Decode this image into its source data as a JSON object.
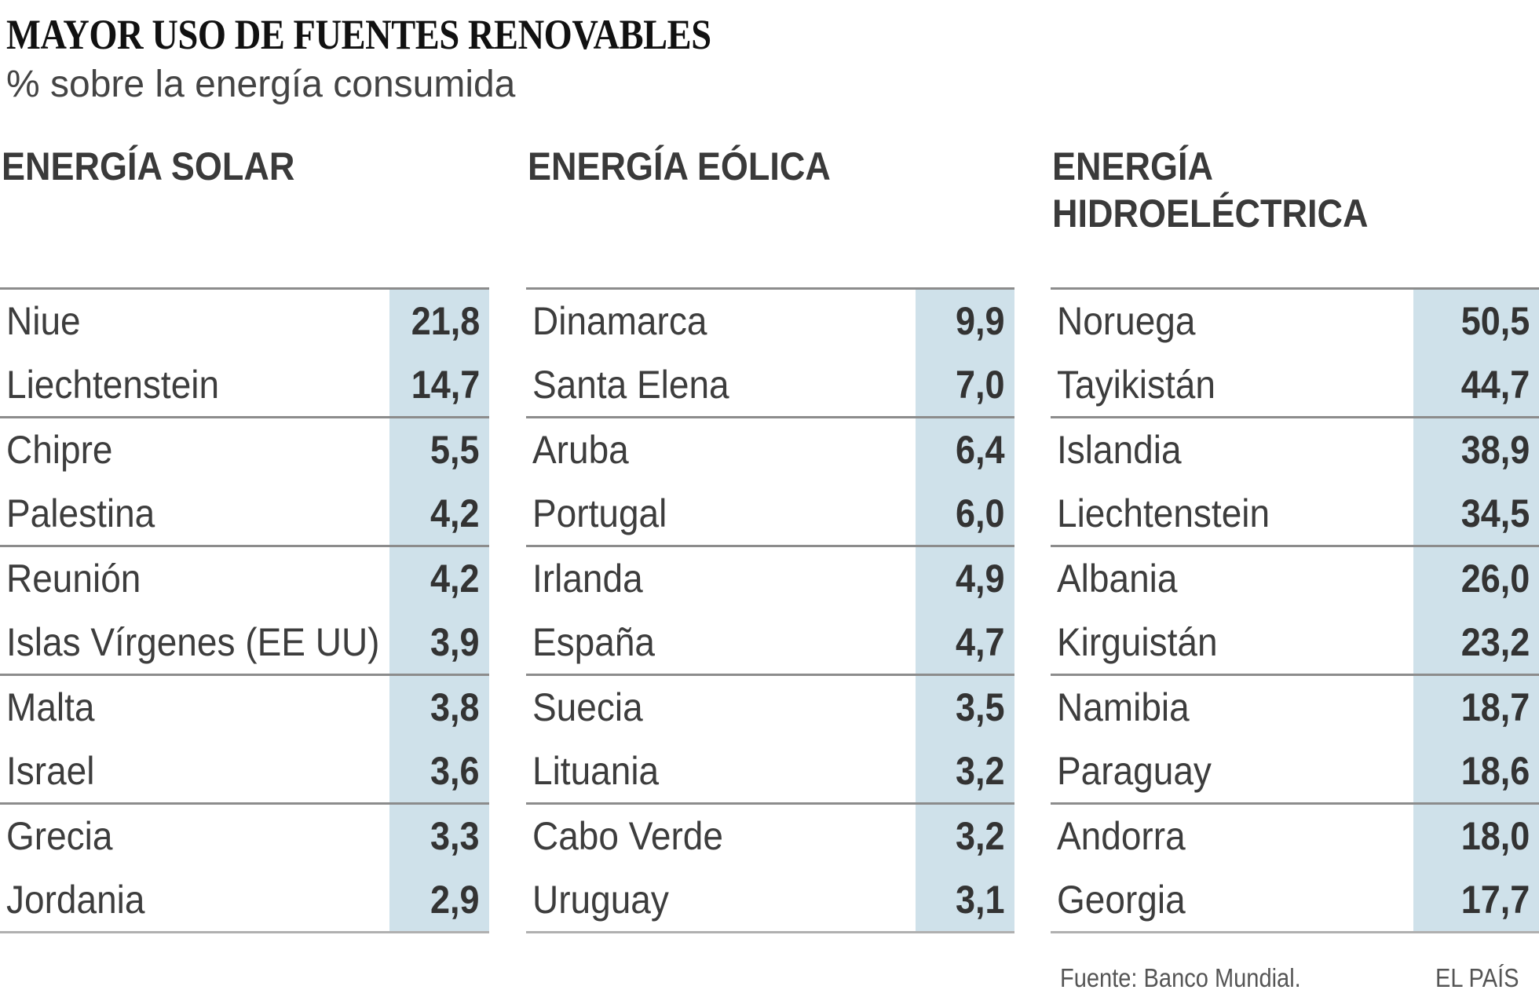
{
  "chart_data": {
    "type": "table",
    "title": "MAYOR USO DE FUENTES RENOVABLES",
    "subtitle": "% sobre la energía consumida",
    "highlight_color": "#cfe1ea",
    "tables": [
      {
        "header": "ENERGÍA SOLAR",
        "rows": [
          {
            "country": "Niue",
            "value": "21,8"
          },
          {
            "country": "Liechtenstein",
            "value": "14,7"
          },
          {
            "country": "Chipre",
            "value": "5,5"
          },
          {
            "country": "Palestina",
            "value": "4,2"
          },
          {
            "country": "Reunión",
            "value": "4,2"
          },
          {
            "country": "Islas Vírgenes (EE UU)",
            "value": "3,9"
          },
          {
            "country": "Malta",
            "value": "3,8"
          },
          {
            "country": "Israel",
            "value": "3,6"
          },
          {
            "country": "Grecia",
            "value": "3,3"
          },
          {
            "country": "Jordania",
            "value": "2,9"
          }
        ]
      },
      {
        "header": "ENERGÍA EÓLICA",
        "rows": [
          {
            "country": "Dinamarca",
            "value": "9,9"
          },
          {
            "country": "Santa Elena",
            "value": "7,0"
          },
          {
            "country": "Aruba",
            "value": "6,4"
          },
          {
            "country": "Portugal",
            "value": "6,0"
          },
          {
            "country": "Irlanda",
            "value": "4,9"
          },
          {
            "country": "España",
            "value": "4,7"
          },
          {
            "country": "Suecia",
            "value": "3,5"
          },
          {
            "country": "Lituania",
            "value": "3,2"
          },
          {
            "country": "Cabo Verde",
            "value": "3,2"
          },
          {
            "country": "Uruguay",
            "value": "3,1"
          }
        ]
      },
      {
        "header": "ENERGÍA\nHIDROELÉCTRICA",
        "rows": [
          {
            "country": "Noruega",
            "value": "50,5"
          },
          {
            "country": "Tayikistán",
            "value": "44,7"
          },
          {
            "country": "Islandia",
            "value": "38,9"
          },
          {
            "country": "Liechtenstein",
            "value": "34,5"
          },
          {
            "country": "Albania",
            "value": "26,0"
          },
          {
            "country": "Kirguistán",
            "value": "23,2"
          },
          {
            "country": "Namibia",
            "value": "18,7"
          },
          {
            "country": "Paraguay",
            "value": "18,6"
          },
          {
            "country": "Andorra",
            "value": "18,0"
          },
          {
            "country": "Georgia",
            "value": "17,7"
          }
        ]
      }
    ]
  },
  "footer": {
    "source": "Fuente: Banco Mundial.",
    "brand": "EL PAÍS"
  }
}
